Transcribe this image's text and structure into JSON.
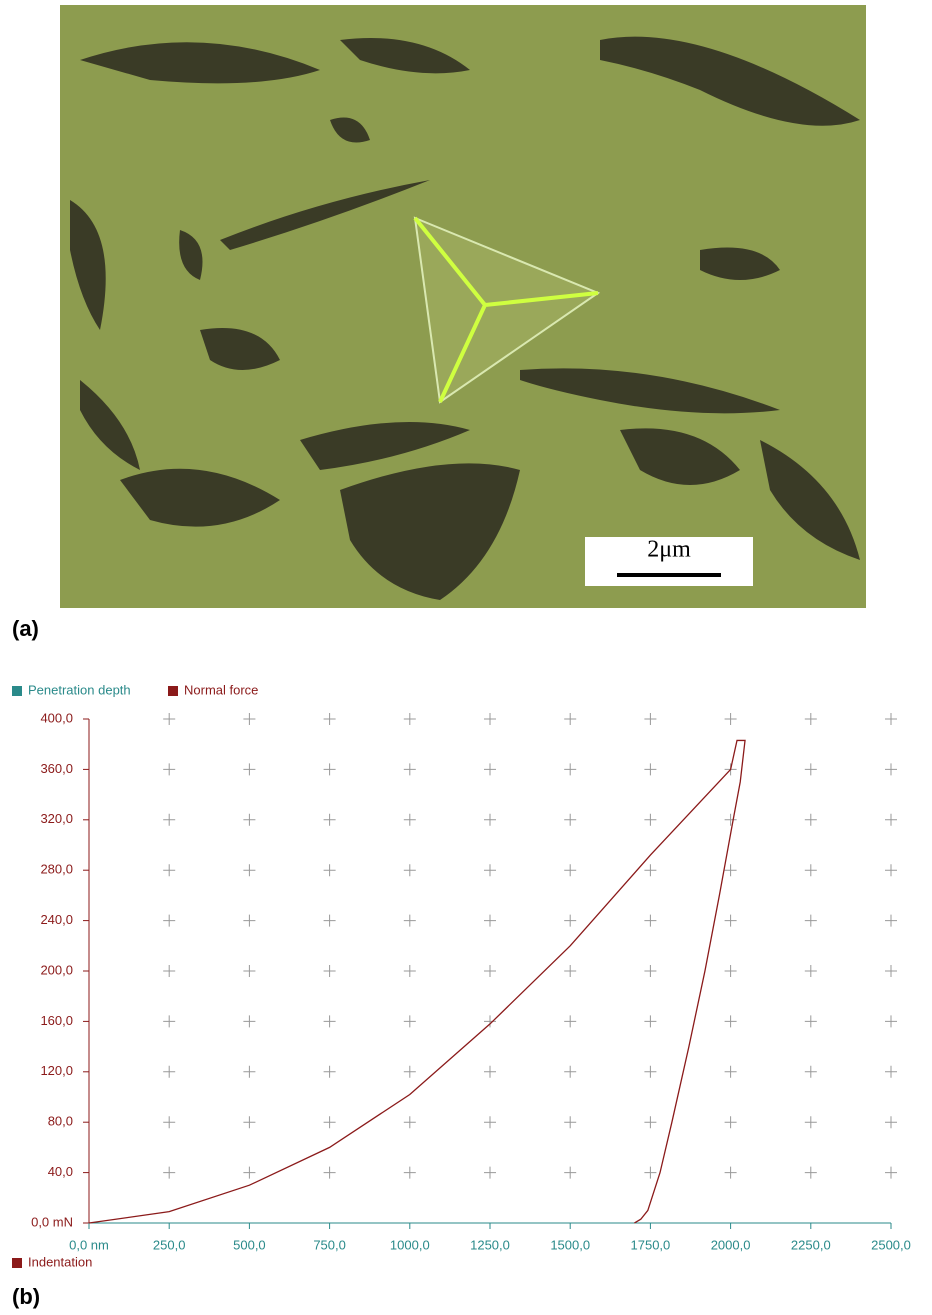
{
  "panels": {
    "a": "(a)",
    "b": "(b)"
  },
  "image": {
    "scale_bar": "2μm"
  },
  "chart_data": {
    "type": "line",
    "xlabel": "Penetration depth",
    "xcolor": "#2a8a8a",
    "ylabel": "Normal force",
    "ycolor": "#8b1a1a",
    "x": [
      0,
      250,
      500,
      750,
      1000,
      1250,
      1500,
      1750,
      2000,
      2020,
      2045,
      2030,
      2008,
      1965,
      1920,
      1870,
      1817,
      1780,
      1742,
      1720,
      1700
    ],
    "series": [
      {
        "name": "Indentation",
        "color": "#8b1a1a",
        "values": [
          0,
          9,
          30,
          60,
          102,
          158,
          220,
          292,
          360,
          383,
          383,
          350,
          320,
          260,
          200,
          140,
          80,
          40,
          10,
          3,
          0
        ]
      }
    ],
    "xlim": [
      0,
      2500
    ],
    "ylim": [
      0,
      400
    ],
    "xticks": [
      {
        "value": 0,
        "label": "0,0 nm"
      },
      {
        "value": 250,
        "label": "250,0"
      },
      {
        "value": 500,
        "label": "500,0"
      },
      {
        "value": 750,
        "label": "750,0"
      },
      {
        "value": 1000,
        "label": "1000,0"
      },
      {
        "value": 1250,
        "label": "1250,0"
      },
      {
        "value": 1500,
        "label": "1500,0"
      },
      {
        "value": 1750,
        "label": "1750,0"
      },
      {
        "value": 2000,
        "label": "2000,0"
      },
      {
        "value": 2250,
        "label": "2250,0"
      },
      {
        "value": 2500,
        "label": "2500,0"
      }
    ],
    "yticks": [
      {
        "value": 0,
        "label": "0,0 mN"
      },
      {
        "value": 40,
        "label": "40,0"
      },
      {
        "value": 80,
        "label": "80,0"
      },
      {
        "value": 120,
        "label": "120,0"
      },
      {
        "value": 160,
        "label": "160,0"
      },
      {
        "value": 200,
        "label": "200,0"
      },
      {
        "value": 240,
        "label": "240,0"
      },
      {
        "value": 280,
        "label": "280,0"
      },
      {
        "value": 320,
        "label": "320,0"
      },
      {
        "value": 360,
        "label": "360,0"
      },
      {
        "value": 400,
        "label": "400,0"
      }
    ],
    "grid": "cross",
    "legend": "bottom-left"
  }
}
